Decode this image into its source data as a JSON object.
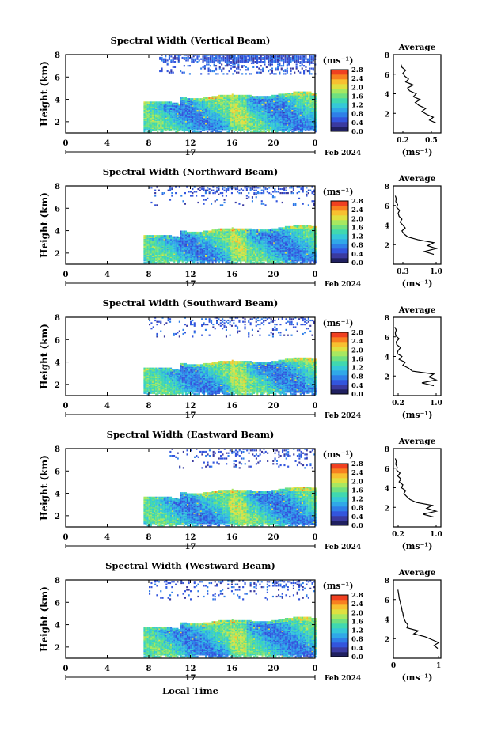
{
  "xlabel": "Local Time",
  "date_line": {
    "day": "17",
    "month_year": "Feb 2024"
  },
  "colorbar": {
    "unit": "(ms⁻¹)",
    "ticks_main": [
      "0.0",
      "0.4",
      "0.8",
      "1.2",
      "1.6",
      "2.0",
      "2.4",
      "2.8"
    ],
    "colors": [
      "#202060",
      "#3a3aa0",
      "#3355dd",
      "#2f7fe8",
      "#30a8e8",
      "#35c8d8",
      "#40d8b0",
      "#70e080",
      "#a8e860",
      "#e0e040",
      "#f8c030",
      "#f88020",
      "#f04020"
    ]
  },
  "chart_data": [
    {
      "type": "heatmap",
      "title": "Spectral Width (Vertical Beam)",
      "xlabel": "",
      "ylabel": "Height (km)",
      "xlim": [
        0,
        24
      ],
      "x_ticks": [
        "0",
        "4",
        "8",
        "12",
        "16",
        "20",
        "0"
      ],
      "ylim": [
        1,
        8
      ],
      "y_ticks": [
        "2",
        "4",
        "6",
        "8"
      ],
      "color_range": [
        0.0,
        2.8
      ],
      "unit": "ms⁻¹",
      "average_profile": {
        "title": "Average",
        "xlabel": "(ms⁻¹)",
        "xlim": [
          0.1,
          0.6
        ],
        "x_ticks": [
          "0.2",
          "0.5"
        ],
        "ylim": [
          0,
          8
        ],
        "y_ticks": [
          "2",
          "4",
          "6",
          "8"
        ],
        "heights": [
          1.0,
          1.3,
          1.6,
          1.9,
          2.2,
          2.5,
          2.8,
          3.1,
          3.4,
          3.7,
          4.0,
          4.3,
          4.6,
          4.9,
          5.2,
          5.5,
          5.8,
          6.1,
          6.4,
          6.7,
          7.0
        ],
        "values": [
          0.55,
          0.48,
          0.52,
          0.45,
          0.4,
          0.44,
          0.37,
          0.33,
          0.38,
          0.31,
          0.34,
          0.27,
          0.25,
          0.31,
          0.23,
          0.26,
          0.22,
          0.2,
          0.23,
          0.19,
          0.18
        ]
      }
    },
    {
      "type": "heatmap",
      "title": "Spectral Width (Northward Beam)",
      "xlabel": "",
      "ylabel": "Height (km)",
      "xlim": [
        0,
        24
      ],
      "x_ticks": [
        "0",
        "4",
        "8",
        "12",
        "16",
        "20",
        "0"
      ],
      "ylim": [
        1,
        8
      ],
      "y_ticks": [
        "2",
        "4",
        "6",
        "8"
      ],
      "color_range": [
        0.0,
        2.8
      ],
      "unit": "ms⁻¹",
      "average_profile": {
        "title": "Average",
        "xlabel": "(ms⁻¹)",
        "xlim": [
          0.1,
          1.1
        ],
        "x_ticks": [
          "0.3",
          "1.0"
        ],
        "ylim": [
          0,
          8
        ],
        "y_ticks": [
          "2",
          "4",
          "6",
          "8"
        ],
        "heights": [
          1.0,
          1.3,
          1.6,
          1.9,
          2.2,
          2.5,
          2.8,
          3.1,
          3.4,
          3.7,
          4.0,
          4.3,
          4.6,
          4.9,
          5.2,
          5.5,
          5.8,
          6.1,
          6.4,
          6.7,
          7.0
        ],
        "values": [
          0.95,
          0.75,
          1.0,
          0.82,
          0.95,
          0.62,
          0.4,
          0.32,
          0.28,
          0.35,
          0.3,
          0.24,
          0.28,
          0.22,
          0.2,
          0.23,
          0.17,
          0.19,
          0.15,
          0.16,
          0.14
        ]
      }
    },
    {
      "type": "heatmap",
      "title": "Spectral Width (Southward Beam)",
      "xlabel": "",
      "ylabel": "Height (km)",
      "xlim": [
        0,
        24
      ],
      "x_ticks": [
        "0",
        "4",
        "8",
        "12",
        "16",
        "20",
        "0"
      ],
      "ylim": [
        1,
        8
      ],
      "y_ticks": [
        "2",
        "4",
        "6",
        "8"
      ],
      "color_range": [
        0.0,
        2.8
      ],
      "unit": "ms⁻¹",
      "average_profile": {
        "title": "Average",
        "xlabel": "(ms⁻¹)",
        "xlim": [
          0.1,
          1.1
        ],
        "x_ticks": [
          "0.2",
          "1.0"
        ],
        "ylim": [
          0,
          8
        ],
        "y_ticks": [
          "2",
          "4",
          "6",
          "8"
        ],
        "heights": [
          1.0,
          1.3,
          1.6,
          1.9,
          2.2,
          2.5,
          2.8,
          3.1,
          3.4,
          3.7,
          4.0,
          4.3,
          4.6,
          4.9,
          5.2,
          5.5,
          5.8,
          6.1,
          6.4,
          6.7,
          7.0
        ],
        "values": [
          0.95,
          0.7,
          1.0,
          0.85,
          0.95,
          0.5,
          0.42,
          0.3,
          0.35,
          0.22,
          0.28,
          0.18,
          0.2,
          0.25,
          0.17,
          0.16,
          0.22,
          0.15,
          0.14,
          0.16,
          0.13
        ]
      }
    },
    {
      "type": "heatmap",
      "title": "Spectral Width (Eastward Beam)",
      "xlabel": "",
      "ylabel": "Height (km)",
      "xlim": [
        0,
        24
      ],
      "x_ticks": [
        "0",
        "4",
        "8",
        "12",
        "16",
        "20",
        "0"
      ],
      "ylim": [
        1,
        8
      ],
      "y_ticks": [
        "2",
        "4",
        "6",
        "8"
      ],
      "color_range": [
        0.0,
        2.8
      ],
      "unit": "ms⁻¹",
      "average_profile": {
        "title": "Average",
        "xlabel": "(ms⁻¹)",
        "xlim": [
          0.1,
          1.1
        ],
        "x_ticks": [
          "0.2",
          "1.0"
        ],
        "ylim": [
          0,
          8
        ],
        "y_ticks": [
          "2",
          "4",
          "6",
          "8"
        ],
        "heights": [
          1.0,
          1.3,
          1.6,
          1.9,
          2.2,
          2.5,
          2.8,
          3.1,
          3.4,
          3.7,
          4.0,
          4.3,
          4.6,
          4.9,
          5.2,
          5.5,
          5.8,
          6.1,
          6.4,
          6.7,
          7.0
        ],
        "values": [
          0.95,
          0.72,
          1.0,
          0.8,
          0.92,
          0.58,
          0.45,
          0.38,
          0.32,
          0.36,
          0.27,
          0.3,
          0.22,
          0.26,
          0.19,
          0.24,
          0.17,
          0.18,
          0.15,
          0.16,
          0.14
        ]
      }
    },
    {
      "type": "heatmap",
      "title": "Spectral Width (Westward Beam)",
      "xlabel": "Local Time",
      "ylabel": "Height (km)",
      "xlim": [
        0,
        24
      ],
      "x_ticks": [
        "0",
        "4",
        "8",
        "12",
        "16",
        "20",
        "0"
      ],
      "ylim": [
        1,
        8
      ],
      "y_ticks": [
        "2",
        "4",
        "6",
        "8"
      ],
      "color_range": [
        0.0,
        2.8
      ],
      "unit": "ms⁻¹",
      "average_profile": {
        "title": "Average",
        "xlabel": "(ms⁻¹)",
        "xlim": [
          0,
          1.05
        ],
        "x_ticks": [
          "0",
          "1"
        ],
        "ylim": [
          0,
          8
        ],
        "y_ticks": [
          "2",
          "4",
          "6",
          "8"
        ],
        "heights": [
          1.0,
          1.3,
          1.6,
          1.9,
          2.2,
          2.5,
          2.8,
          3.1,
          3.4,
          3.7,
          4.0,
          4.3,
          4.6,
          4.9,
          5.2,
          5.5,
          5.8,
          6.1,
          6.4,
          6.7,
          7.0
        ],
        "values": [
          0.98,
          0.9,
          1.0,
          0.85,
          0.7,
          0.45,
          0.55,
          0.3,
          0.32,
          0.27,
          0.24,
          0.22,
          0.21,
          0.19,
          0.18,
          0.16,
          0.15,
          0.13,
          0.12,
          0.11,
          0.1
        ]
      }
    }
  ]
}
